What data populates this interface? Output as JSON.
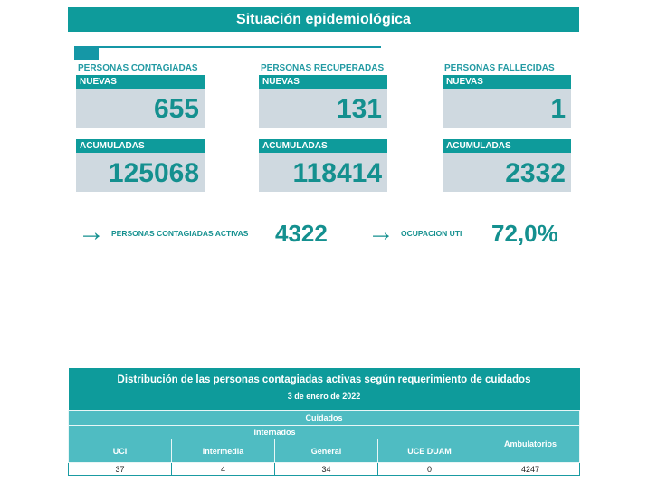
{
  "title": "Situación epidemiológica",
  "cards": [
    {
      "label": "PERSONAS CONTAGIADAS",
      "new_label": "NUEVAS",
      "new": "655",
      "acc_label": "ACUMULADAS",
      "acc": "125068"
    },
    {
      "label": "PERSONAS RECUPERADAS",
      "new_label": "NUEVAS",
      "new": "131",
      "acc_label": "ACUMULADAS",
      "acc": "118414"
    },
    {
      "label": "PERSONAS FALLECIDAS",
      "new_label": "NUEVAS",
      "new": "1",
      "acc_label": "ACUMULADAS",
      "acc": "2332"
    }
  ],
  "kpis": [
    {
      "label": "PERSONAS CONTAGIADAS ACTIVAS",
      "value": "4322"
    },
    {
      "label": "OCUPACION UTI",
      "value": "72,0%"
    }
  ],
  "table": {
    "title": "Distribución de las personas contagiadas activas según requerimiento de cuidados",
    "date": "3 de enero de 2022",
    "group": "Cuidados",
    "subgroup": "Internados",
    "columns": [
      "UCI",
      "Intermedia",
      "General",
      "UCE DUAM",
      "Ambulatorios"
    ],
    "values": [
      "37",
      "4",
      "34",
      "0",
      "4247"
    ]
  }
}
